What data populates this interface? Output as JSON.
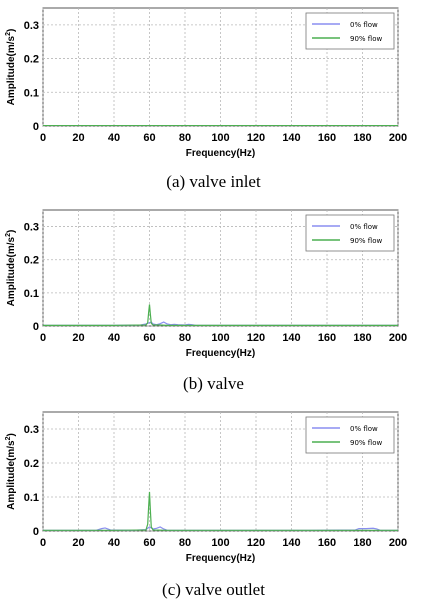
{
  "chart_data": [
    {
      "type": "line",
      "caption": "(a)  valve  inlet",
      "xlabel": "Frequency(Hz)",
      "ylabel_prefix": "Amplitude(m/s",
      "ylabel_sup": "2",
      "ylabel_suffix": ")",
      "xlim": [
        0,
        200
      ],
      "ylim": [
        0,
        0.35
      ],
      "xticks": [
        "0",
        "20",
        "40",
        "60",
        "80",
        "100",
        "120",
        "140",
        "160",
        "180",
        "200"
      ],
      "yticks": [
        "0",
        "0.1",
        "0.2",
        "0.3"
      ],
      "grid": true,
      "legend_position": "top-right",
      "series": [
        {
          "name": "0% flow",
          "color": "#8a8ef0",
          "x": [
            0,
            10,
            20,
            30,
            40,
            50,
            60,
            70,
            80,
            90,
            100,
            110,
            120,
            130,
            140,
            150,
            160,
            170,
            180,
            190,
            200
          ],
          "y": [
            0.001,
            0.001,
            0.001,
            0.001,
            0.001,
            0.001,
            0.001,
            0.001,
            0.001,
            0.001,
            0.001,
            0.001,
            0.001,
            0.001,
            0.001,
            0.001,
            0.001,
            0.001,
            0.001,
            0.001,
            0.001
          ]
        },
        {
          "name": "90% flow",
          "color": "#4caf50",
          "x": [
            0,
            10,
            20,
            30,
            40,
            50,
            60,
            70,
            80,
            90,
            100,
            110,
            120,
            130,
            140,
            150,
            160,
            170,
            180,
            190,
            200
          ],
          "y": [
            0.001,
            0.001,
            0.001,
            0.001,
            0.001,
            0.001,
            0.001,
            0.001,
            0.001,
            0.001,
            0.001,
            0.001,
            0.001,
            0.001,
            0.001,
            0.001,
            0.001,
            0.001,
            0.001,
            0.001,
            0.001
          ]
        }
      ]
    },
    {
      "type": "line",
      "caption": "(b)  valve",
      "xlabel": "Frequency(Hz)",
      "ylabel_prefix": "Amplitude(m/s",
      "ylabel_sup": "2",
      "ylabel_suffix": ")",
      "xlim": [
        0,
        200
      ],
      "ylim": [
        0,
        0.35
      ],
      "xticks": [
        "0",
        "20",
        "40",
        "60",
        "80",
        "100",
        "120",
        "140",
        "160",
        "180",
        "200"
      ],
      "yticks": [
        "0",
        "0.1",
        "0.2",
        "0.3"
      ],
      "grid": true,
      "legend_position": "top-right",
      "series": [
        {
          "name": "0% flow",
          "color": "#8a8ef0",
          "x": [
            0,
            40,
            55,
            58,
            60,
            61,
            62,
            64,
            66,
            68,
            70,
            72,
            74,
            76,
            80,
            82,
            84,
            86,
            90,
            120,
            160,
            200
          ],
          "y": [
            0.002,
            0.002,
            0.003,
            0.006,
            0.01,
            0.012,
            0.006,
            0.004,
            0.007,
            0.012,
            0.006,
            0.004,
            0.005,
            0.004,
            0.003,
            0.005,
            0.004,
            0.002,
            0.002,
            0.002,
            0.002,
            0.002
          ]
        },
        {
          "name": "90% flow",
          "color": "#4caf50",
          "x": [
            0,
            40,
            58,
            59,
            59.5,
            60,
            60.5,
            61,
            62,
            66,
            70,
            90,
            120,
            160,
            200
          ],
          "y": [
            0.002,
            0.002,
            0.003,
            0.01,
            0.04,
            0.065,
            0.035,
            0.008,
            0.003,
            0.003,
            0.002,
            0.002,
            0.002,
            0.002,
            0.002
          ]
        }
      ]
    },
    {
      "type": "line",
      "caption": "(c)  valve  outlet",
      "xlabel": "Frequency(Hz)",
      "ylabel_prefix": "Amplitude(m/s",
      "ylabel_sup": "2",
      "ylabel_suffix": ")",
      "xlim": [
        0,
        200
      ],
      "ylim": [
        0,
        0.35
      ],
      "xticks": [
        "0",
        "20",
        "40",
        "60",
        "80",
        "100",
        "120",
        "140",
        "160",
        "180",
        "200"
      ],
      "yticks": [
        "0",
        "0.1",
        "0.2",
        "0.3"
      ],
      "grid": true,
      "legend_position": "top-right",
      "series": [
        {
          "name": "0% flow",
          "color": "#8a8ef0",
          "x": [
            0,
            30,
            33,
            35,
            38,
            50,
            58,
            60,
            62,
            64,
            66,
            68,
            70,
            100,
            150,
            176,
            178,
            182,
            186,
            188,
            190,
            200
          ],
          "y": [
            0.002,
            0.002,
            0.007,
            0.009,
            0.003,
            0.002,
            0.004,
            0.012,
            0.006,
            0.008,
            0.012,
            0.006,
            0.002,
            0.002,
            0.002,
            0.003,
            0.007,
            0.007,
            0.008,
            0.006,
            0.002,
            0.002
          ]
        },
        {
          "name": "90% flow",
          "color": "#4caf50",
          "x": [
            0,
            40,
            58,
            59,
            59.5,
            60,
            60.5,
            61,
            62,
            70,
            100,
            150,
            200
          ],
          "y": [
            0.002,
            0.002,
            0.003,
            0.02,
            0.07,
            0.115,
            0.06,
            0.012,
            0.003,
            0.002,
            0.002,
            0.002,
            0.002
          ]
        }
      ]
    }
  ]
}
